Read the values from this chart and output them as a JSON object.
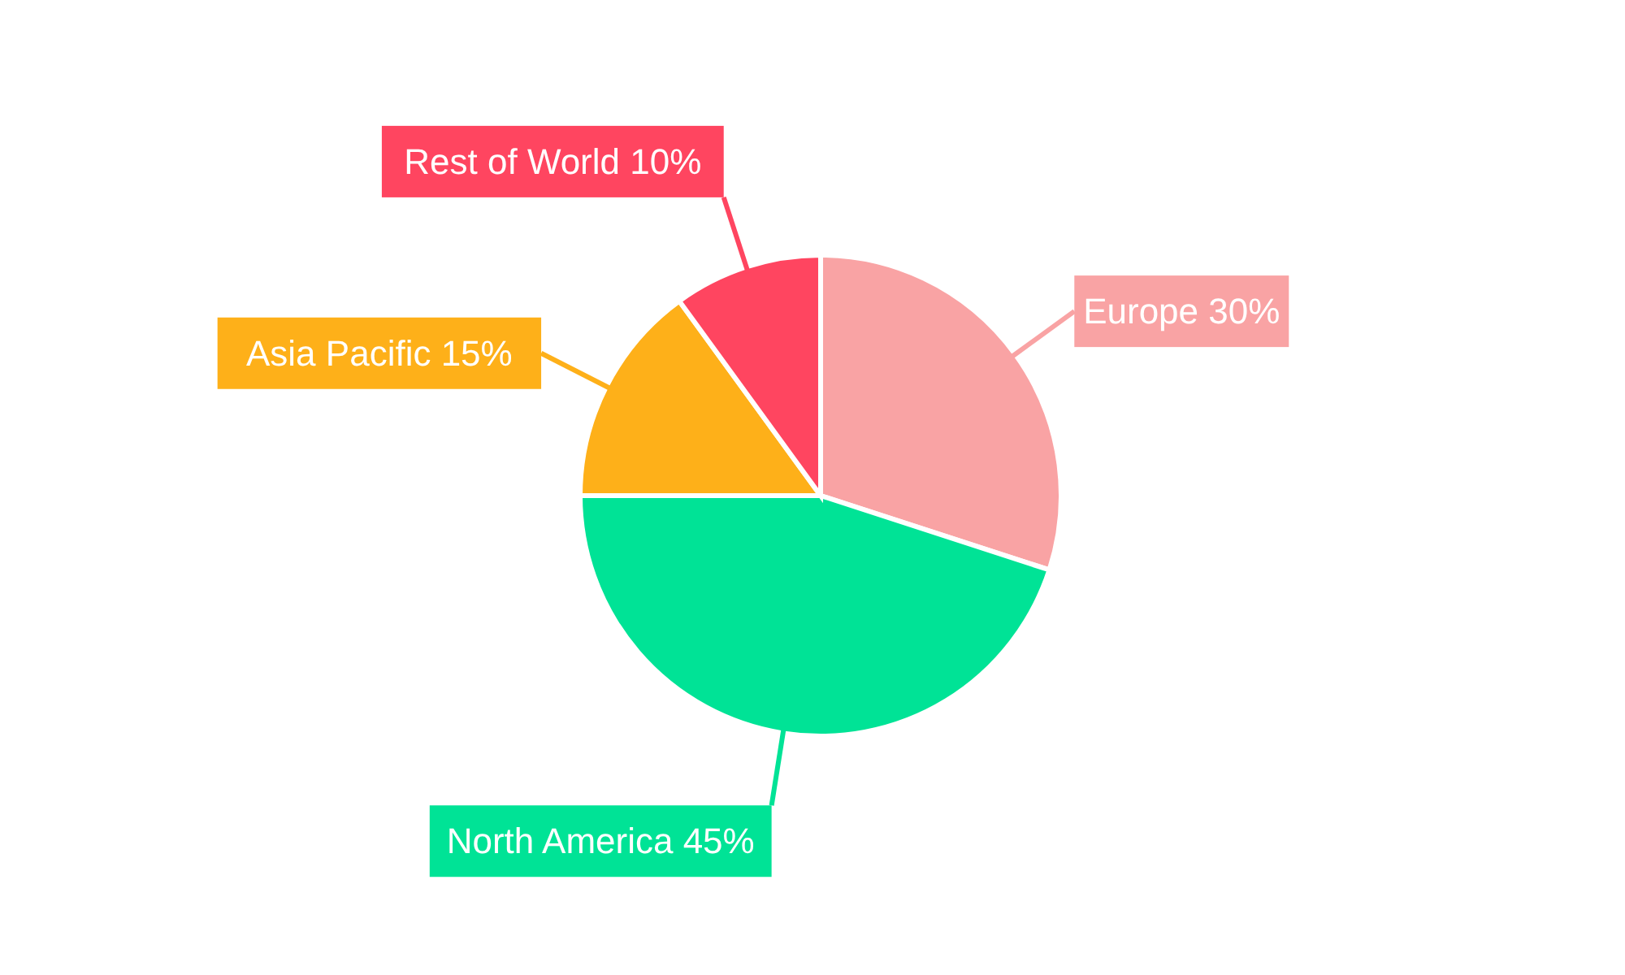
{
  "chart_data": {
    "type": "pie",
    "categories": [
      "Europe",
      "North America",
      "Asia Pacific",
      "Rest of World"
    ],
    "values": [
      30,
      45,
      15,
      10
    ],
    "value_labels": [
      "30%",
      "45%",
      "15%",
      "10%"
    ],
    "colors": [
      "#f9a3a4",
      "#00e396",
      "#feb019",
      "#ff4560"
    ],
    "legend": false
  }
}
